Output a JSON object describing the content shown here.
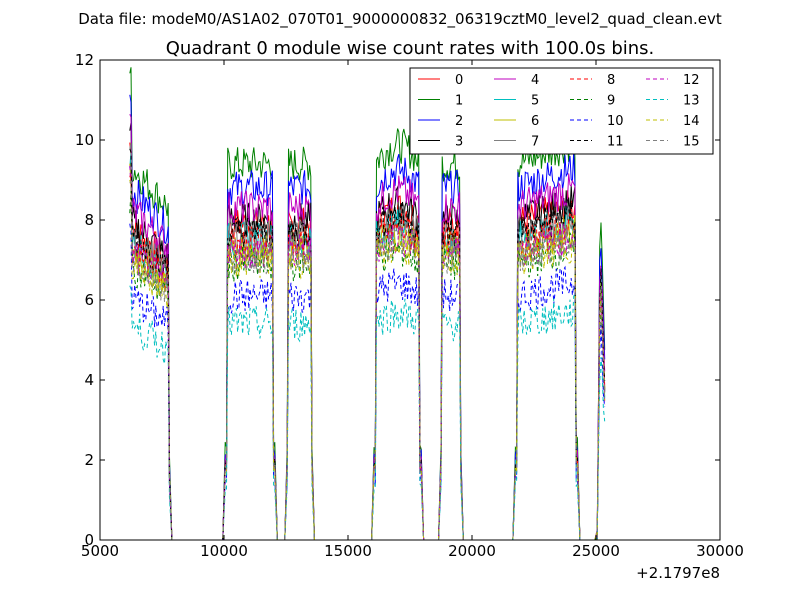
{
  "header": {
    "file_line": "Data file: modeM0/AS1A02_070T01_9000000832_06319cztM0_level2_quad_clean.evt"
  },
  "chart_data": {
    "type": "line",
    "title": "Quadrant 0 module wise count rates with 100.0s bins.",
    "xlabel": "",
    "ylabel": "",
    "x_offset_label": "+2.1797e8",
    "xlim": [
      5000,
      30000
    ],
    "ylim": [
      0,
      12
    ],
    "xticks": [
      5000,
      10000,
      15000,
      20000,
      25000,
      30000
    ],
    "yticks": [
      0,
      2,
      4,
      6,
      8,
      10,
      12
    ],
    "grid": false,
    "legend_position": "top-right",
    "legend_columns": 4,
    "x_segments": [
      [
        6200,
        7800
      ],
      [
        7900,
        9950
      ],
      [
        10050,
        12050
      ],
      [
        12150,
        12450
      ],
      [
        12550,
        13550
      ],
      [
        13650,
        15950
      ],
      [
        16050,
        17950
      ],
      [
        18050,
        18650
      ],
      [
        18750,
        19550
      ],
      [
        19650,
        21650
      ],
      [
        21750,
        24250
      ],
      [
        24350,
        24950
      ],
      [
        25050,
        25350
      ]
    ],
    "segment_active": [
      true,
      false,
      true,
      false,
      true,
      false,
      true,
      false,
      true,
      false,
      true,
      false,
      true
    ],
    "series": [
      {
        "name": "0",
        "color": "#ff0000",
        "dash": "solid",
        "level": 7.9
      },
      {
        "name": "1",
        "color": "#008000",
        "dash": "solid",
        "level": 9.4
      },
      {
        "name": "2",
        "color": "#0000ff",
        "dash": "solid",
        "level": 8.8
      },
      {
        "name": "3",
        "color": "#000000",
        "dash": "solid",
        "level": 8.0
      },
      {
        "name": "4",
        "color": "#bf00bf",
        "dash": "solid",
        "level": 8.3
      },
      {
        "name": "5",
        "color": "#00bfbf",
        "dash": "solid",
        "level": 7.5
      },
      {
        "name": "6",
        "color": "#bfbf00",
        "dash": "solid",
        "level": 7.3
      },
      {
        "name": "7",
        "color": "#808080",
        "dash": "solid",
        "level": 7.6
      },
      {
        "name": "8",
        "color": "#ff0000",
        "dash": "dashed",
        "level": 7.4
      },
      {
        "name": "9",
        "color": "#008000",
        "dash": "dashed",
        "level": 6.9
      },
      {
        "name": "10",
        "color": "#0000ff",
        "dash": "dashed",
        "level": 6.1
      },
      {
        "name": "11",
        "color": "#000000",
        "dash": "dashed",
        "level": 7.7
      },
      {
        "name": "12",
        "color": "#bf00bf",
        "dash": "dashed",
        "level": 7.2
      },
      {
        "name": "13",
        "color": "#00bfbf",
        "dash": "dashed",
        "level": 5.4
      },
      {
        "name": "14",
        "color": "#bfbf00",
        "dash": "dashed",
        "level": 7.0
      },
      {
        "name": "15",
        "color": "#808080",
        "dash": "dashed",
        "level": 7.1
      }
    ]
  }
}
